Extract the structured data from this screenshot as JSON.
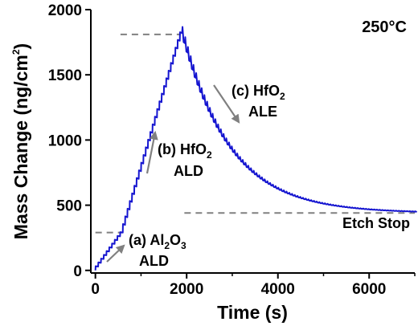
{
  "chart_data": {
    "type": "line",
    "xlabel": "Time (s)",
    "ylabel_main": "Mass Change (ng/cm",
    "ylabel_sup": "2",
    "ylabel_close": ")",
    "xlim": [
      -100,
      7000
    ],
    "ylim": [
      -20,
      2000
    ],
    "x_ticks": [
      0,
      2000,
      4000,
      6000
    ],
    "y_ticks": [
      0,
      500,
      1000,
      1500,
      2000
    ],
    "temperature": "250°C",
    "colors": {
      "series": "#1515d0",
      "guides": "#808080",
      "arrows": "#808080"
    },
    "annotations": {
      "a": {
        "line1_prefix": "(a) Al",
        "line1_sub1": "2",
        "line1_mid": "O",
        "line1_sub2": "3",
        "line2": "ALD"
      },
      "b": {
        "line1": "(b) HfO",
        "line1_sub": "2",
        "line2": "ALD"
      },
      "c": {
        "line1": "(c) HfO",
        "line1_sub": "2",
        "line2": "ALE"
      },
      "etch_stop": "Etch Stop"
    },
    "guides": [
      {
        "y": 290,
        "x_from": 0,
        "x_to": 600
      },
      {
        "y": 1810,
        "x_from": 550,
        "x_to": 1870
      },
      {
        "y": 440,
        "x_from": 1950,
        "x_to": 7000
      }
    ],
    "segments": {
      "al2o3_ald": {
        "x_start": 0,
        "x_end": 600,
        "y_start": 0,
        "y_end": 290
      },
      "hfo2_ald": {
        "x_start": 600,
        "x_end": 1900,
        "y_start": 290,
        "y_end": 1820
      },
      "hfo2_ale": {
        "x_start": 1900,
        "x_end": 7000,
        "y_start": 1820,
        "y_plateau": 440,
        "decay_time_s": 1050
      }
    }
  }
}
